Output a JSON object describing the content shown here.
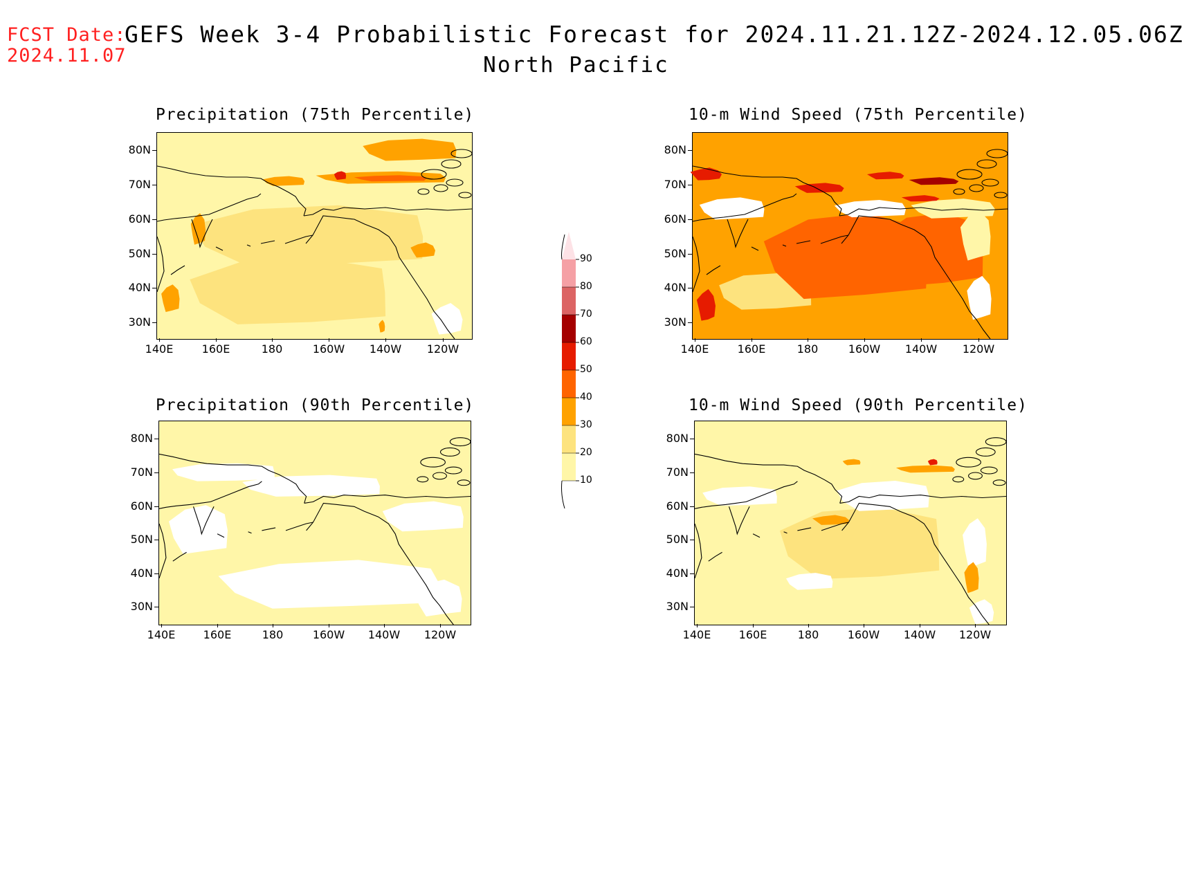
{
  "header": {
    "fcst_label": "FCST Date:",
    "fcst_date": "2024.11.07",
    "title": "GEFS Week 3-4 Probabilistic Forecast for 2024.11.21.12Z-2024.12.05.06Z",
    "region": "North Pacific"
  },
  "axes": {
    "lat_labels": [
      "80N",
      "70N",
      "60N",
      "50N",
      "40N",
      "30N"
    ],
    "lon_labels": [
      "140E",
      "160E",
      "180",
      "160W",
      "140W",
      "120W"
    ]
  },
  "panels": [
    {
      "id": "p75",
      "title": "Precipitation (75th Percentile)"
    },
    {
      "id": "w75",
      "title": "10-m Wind Speed (75th Percentile)"
    },
    {
      "id": "p90",
      "title": "Precipitation (90th Percentile)"
    },
    {
      "id": "w90",
      "title": "10-m Wind Speed (90th Percentile)"
    }
  ],
  "colorbar": {
    "levels": [
      "10",
      "20",
      "30",
      "40",
      "50",
      "60",
      "70",
      "80",
      "90"
    ],
    "colors": [
      "#fff6a8",
      "#fde37e",
      "#ffa200",
      "#ff6400",
      "#e61b00",
      "#a50000",
      "#dc6464",
      "#f5a0a5",
      "#fde2e6"
    ]
  }
}
